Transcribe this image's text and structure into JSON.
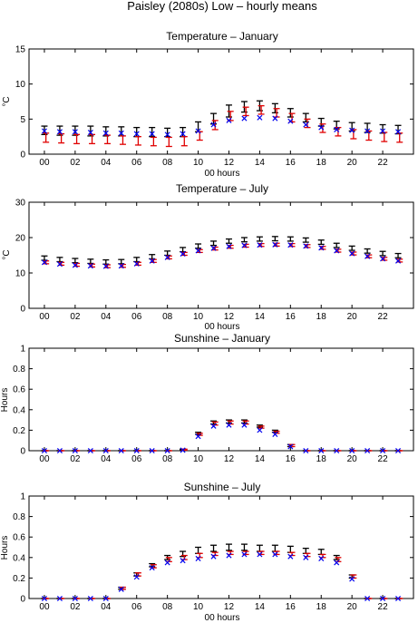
{
  "figure_title": "Paisley (2080s) Low – hourly means",
  "colors": {
    "black": "#000000",
    "red": "#e00000",
    "blue": "#0000ee"
  },
  "chart_data": [
    {
      "type": "scatter",
      "title": "Temperature – January",
      "xlabel": "00 hours",
      "ylabel": "°C",
      "ylim": [
        0,
        15
      ],
      "yticks": [
        0,
        5,
        10,
        15
      ],
      "xlim": [
        -1,
        24
      ],
      "xticks": [
        0,
        2,
        4,
        6,
        8,
        10,
        12,
        14,
        16,
        18,
        20,
        22
      ],
      "xticklabels": [
        "00",
        "02",
        "04",
        "06",
        "08",
        "10",
        "12",
        "14",
        "16",
        "18",
        "20",
        "22"
      ],
      "grid": false,
      "series": [
        {
          "marker": "bar",
          "color": "black",
          "x": [
            0,
            1,
            2,
            3,
            4,
            5,
            6,
            7,
            8,
            9,
            10,
            11,
            12,
            13,
            14,
            15,
            16,
            17,
            18,
            19,
            20,
            21,
            22,
            23
          ],
          "low": [
            2.8,
            2.7,
            2.7,
            2.6,
            2.6,
            2.6,
            2.5,
            2.5,
            2.5,
            2.5,
            3.2,
            4.3,
            5.3,
            6.0,
            6.2,
            5.9,
            5.3,
            4.6,
            4.0,
            3.6,
            3.3,
            3.1,
            3.0,
            2.9
          ],
          "high": [
            4.0,
            4.0,
            4.0,
            4.0,
            3.9,
            3.9,
            3.8,
            3.8,
            3.7,
            3.8,
            4.6,
            5.8,
            7.0,
            7.5,
            7.6,
            7.2,
            6.5,
            5.8,
            5.1,
            4.7,
            4.5,
            4.4,
            4.2,
            4.1
          ]
        },
        {
          "marker": "bar",
          "color": "red",
          "x": [
            0.1,
            1.1,
            2.1,
            3.1,
            4.1,
            5.1,
            6.1,
            7.1,
            8.1,
            9.1,
            10.1,
            11.1,
            12.1,
            13.1,
            14.1,
            15.1,
            16.1,
            17.1,
            18.1,
            19.1,
            20.1,
            21.1,
            22.1,
            23.1
          ],
          "low": [
            1.7,
            1.6,
            1.5,
            1.5,
            1.5,
            1.4,
            1.3,
            1.2,
            1.1,
            1.2,
            2.0,
            3.5,
            4.8,
            5.5,
            5.7,
            5.3,
            4.6,
            3.8,
            3.1,
            2.6,
            2.2,
            2.0,
            1.8,
            1.7
          ],
          "high": [
            3.0,
            2.9,
            2.8,
            2.8,
            2.7,
            2.6,
            2.5,
            2.4,
            2.4,
            2.5,
            3.2,
            4.8,
            6.1,
            6.7,
            6.9,
            6.5,
            5.8,
            5.0,
            4.3,
            3.8,
            3.5,
            3.3,
            3.1,
            3.0
          ]
        },
        {
          "marker": "x",
          "color": "blue",
          "x": [
            0,
            1,
            2,
            3,
            4,
            5,
            6,
            7,
            8,
            9,
            10,
            11,
            12,
            13,
            14,
            15,
            16,
            17,
            18,
            19,
            20,
            21,
            22,
            23
          ],
          "y": [
            3.3,
            3.2,
            3.2,
            3.1,
            3.0,
            3.0,
            2.9,
            2.9,
            2.8,
            2.9,
            3.3,
            4.2,
            4.8,
            5.1,
            5.2,
            5.1,
            4.7,
            4.2,
            3.8,
            3.5,
            3.4,
            3.3,
            3.3,
            3.2
          ]
        }
      ]
    },
    {
      "type": "scatter",
      "title": "Temperature – July",
      "xlabel": "00 hours",
      "ylabel": "°C",
      "ylim": [
        0,
        30
      ],
      "yticks": [
        0,
        10,
        20,
        30
      ],
      "xlim": [
        -1,
        24
      ],
      "xticks": [
        0,
        2,
        4,
        6,
        8,
        10,
        12,
        14,
        16,
        18,
        20,
        22
      ],
      "xticklabels": [
        "00",
        "02",
        "04",
        "06",
        "08",
        "10",
        "12",
        "14",
        "16",
        "18",
        "20",
        "22"
      ],
      "grid": false,
      "series": [
        {
          "marker": "bar",
          "color": "black",
          "x": [
            0,
            1,
            2,
            3,
            4,
            5,
            6,
            7,
            8,
            9,
            10,
            11,
            12,
            13,
            14,
            15,
            16,
            17,
            18,
            19,
            20,
            21,
            22,
            23
          ],
          "low": [
            13.6,
            13.2,
            12.9,
            12.7,
            12.5,
            12.6,
            13.2,
            14.0,
            15.0,
            16.0,
            17.0,
            17.8,
            18.4,
            18.8,
            19.0,
            19.1,
            19.0,
            18.7,
            18.1,
            17.2,
            16.4,
            15.6,
            14.9,
            14.3
          ],
          "high": [
            14.8,
            14.4,
            14.1,
            13.9,
            13.7,
            13.8,
            14.4,
            15.2,
            16.2,
            17.2,
            18.2,
            19.0,
            19.6,
            20.0,
            20.2,
            20.3,
            20.2,
            19.9,
            19.3,
            18.4,
            17.6,
            16.8,
            16.1,
            15.5
          ]
        },
        {
          "marker": "bar",
          "color": "red",
          "x": [
            0.1,
            1.1,
            2.1,
            3.1,
            4.1,
            5.1,
            6.1,
            7.1,
            8.1,
            9.1,
            10.1,
            11.1,
            12.1,
            13.1,
            14.1,
            15.1,
            16.1,
            17.1,
            18.1,
            19.1,
            20.1,
            21.1,
            22.1,
            23.1
          ],
          "low": [
            12.6,
            12.2,
            11.9,
            11.7,
            11.5,
            11.6,
            12.2,
            13.0,
            14.0,
            15.0,
            15.8,
            16.5,
            17.0,
            17.3,
            17.5,
            17.6,
            17.5,
            17.2,
            16.7,
            15.9,
            15.1,
            14.3,
            13.6,
            13.1
          ],
          "high": [
            13.4,
            13.0,
            12.7,
            12.5,
            12.3,
            12.4,
            13.0,
            13.8,
            14.8,
            15.8,
            16.6,
            17.3,
            17.8,
            18.1,
            18.3,
            18.4,
            18.3,
            18.0,
            17.5,
            16.7,
            15.9,
            15.1,
            14.4,
            13.9
          ]
        },
        {
          "marker": "x",
          "color": "blue",
          "x": [
            0,
            1,
            2,
            3,
            4,
            5,
            6,
            7,
            8,
            9,
            10,
            11,
            12,
            13,
            14,
            15,
            16,
            17,
            18,
            19,
            20,
            21,
            22,
            23
          ],
          "y": [
            13.0,
            12.5,
            12.2,
            12.0,
            11.9,
            12.0,
            12.6,
            13.4,
            14.4,
            15.4,
            16.3,
            17.0,
            17.5,
            17.8,
            17.9,
            18.0,
            17.9,
            17.6,
            17.1,
            16.3,
            15.5,
            14.7,
            14.0,
            13.4
          ]
        }
      ]
    },
    {
      "type": "scatter",
      "title": "Sunshine – January",
      "xlabel": "00 hours",
      "ylabel": "Hours",
      "ylim": [
        0,
        1
      ],
      "yticks": [
        0,
        0.2,
        0.4,
        0.6,
        0.8,
        1
      ],
      "yticklabels": [
        "0",
        "0.2",
        "0.4",
        "0.6",
        "0.8",
        "1"
      ],
      "xlim": [
        -1,
        24
      ],
      "xticks": [
        0,
        2,
        4,
        6,
        8,
        10,
        12,
        14,
        16,
        18,
        20,
        22
      ],
      "xticklabels": [
        "00",
        "02",
        "04",
        "06",
        "08",
        "10",
        "12",
        "14",
        "16",
        "18",
        "20",
        "22"
      ],
      "grid": false,
      "series": [
        {
          "marker": "bar",
          "color": "black",
          "x": [
            0,
            1,
            2,
            3,
            4,
            5,
            6,
            7,
            8,
            9,
            10,
            11,
            12,
            13,
            14,
            15,
            16,
            17,
            18,
            19,
            20,
            21,
            22,
            23
          ],
          "low": [
            0,
            0,
            0,
            0,
            0,
            0,
            0,
            0,
            0,
            0.005,
            0.16,
            0.26,
            0.27,
            0.27,
            0.23,
            0.18,
            0.04,
            0,
            0,
            0,
            0,
            0,
            0,
            0
          ],
          "high": [
            0,
            0,
            0,
            0,
            0,
            0,
            0,
            0,
            0,
            0.015,
            0.18,
            0.29,
            0.3,
            0.3,
            0.25,
            0.2,
            0.06,
            0,
            0,
            0,
            0,
            0,
            0,
            0
          ]
        },
        {
          "marker": "bar",
          "color": "red",
          "x": [
            0.1,
            1.1,
            2.1,
            3.1,
            4.1,
            5.1,
            6.1,
            7.1,
            8.1,
            9.1,
            10.1,
            11.1,
            12.1,
            13.1,
            14.1,
            15.1,
            16.1,
            17.1,
            18.1,
            19.1,
            20.1,
            21.1,
            22.1,
            23.1
          ],
          "low": [
            0,
            0,
            0,
            0,
            0,
            0,
            0,
            0,
            0,
            0.005,
            0.15,
            0.25,
            0.26,
            0.26,
            0.22,
            0.17,
            0.04,
            0,
            0,
            0,
            0,
            0,
            0,
            0
          ],
          "high": [
            0,
            0,
            0,
            0,
            0,
            0,
            0,
            0,
            0,
            0.015,
            0.17,
            0.28,
            0.29,
            0.29,
            0.24,
            0.19,
            0.06,
            0,
            0,
            0,
            0,
            0,
            0,
            0
          ]
        },
        {
          "marker": "x",
          "color": "blue",
          "x": [
            0,
            1,
            2,
            3,
            4,
            5,
            6,
            7,
            8,
            9,
            10,
            11,
            12,
            13,
            14,
            15,
            16,
            17,
            18,
            19,
            20,
            21,
            22,
            23
          ],
          "y": [
            0,
            0,
            0,
            0,
            0,
            0,
            0,
            0,
            0,
            0.005,
            0.14,
            0.24,
            0.25,
            0.25,
            0.2,
            0.16,
            0.04,
            0,
            0,
            0,
            0,
            0,
            0,
            0
          ]
        }
      ]
    },
    {
      "type": "scatter",
      "title": "Sunshine – July",
      "xlabel": "00 hours",
      "ylabel": "Hours",
      "ylim": [
        0,
        1
      ],
      "yticks": [
        0,
        0.2,
        0.4,
        0.6,
        0.8,
        1
      ],
      "yticklabels": [
        "0",
        "0.2",
        "0.4",
        "0.6",
        "0.8",
        "1"
      ],
      "xlim": [
        -1,
        24
      ],
      "xticks": [
        0,
        2,
        4,
        6,
        8,
        10,
        12,
        14,
        16,
        18,
        20,
        22
      ],
      "xticklabels": [
        "00",
        "02",
        "04",
        "06",
        "08",
        "10",
        "12",
        "14",
        "16",
        "18",
        "20",
        "22"
      ],
      "grid": false,
      "series": [
        {
          "marker": "bar",
          "color": "black",
          "x": [
            0,
            1,
            2,
            3,
            4,
            5,
            6,
            7,
            8,
            9,
            10,
            11,
            12,
            13,
            14,
            15,
            16,
            17,
            18,
            19,
            20,
            21,
            22,
            23
          ],
          "low": [
            0,
            0,
            0,
            0,
            0,
            0.09,
            0.22,
            0.31,
            0.38,
            0.41,
            0.44,
            0.46,
            0.47,
            0.47,
            0.46,
            0.46,
            0.45,
            0.44,
            0.43,
            0.38,
            0.2,
            0,
            0,
            0
          ],
          "high": [
            0,
            0,
            0,
            0,
            0,
            0.11,
            0.25,
            0.34,
            0.42,
            0.46,
            0.5,
            0.52,
            0.53,
            0.53,
            0.52,
            0.52,
            0.51,
            0.49,
            0.48,
            0.42,
            0.23,
            0,
            0,
            0
          ]
        },
        {
          "marker": "bar",
          "color": "red",
          "x": [
            0.1,
            1.1,
            2.1,
            3.1,
            4.1,
            5.1,
            6.1,
            7.1,
            8.1,
            9.1,
            10.1,
            11.1,
            12.1,
            13.1,
            14.1,
            15.1,
            16.1,
            17.1,
            18.1,
            19.1,
            20.1,
            21.1,
            22.1,
            23.1
          ],
          "low": [
            0,
            0,
            0,
            0,
            0,
            0.09,
            0.22,
            0.3,
            0.36,
            0.38,
            0.4,
            0.42,
            0.43,
            0.43,
            0.43,
            0.43,
            0.42,
            0.41,
            0.4,
            0.36,
            0.2,
            0,
            0,
            0
          ],
          "high": [
            0,
            0,
            0,
            0,
            0,
            0.11,
            0.25,
            0.33,
            0.4,
            0.42,
            0.44,
            0.45,
            0.46,
            0.46,
            0.46,
            0.46,
            0.45,
            0.44,
            0.43,
            0.4,
            0.23,
            0,
            0,
            0
          ]
        },
        {
          "marker": "x",
          "color": "blue",
          "x": [
            0,
            1,
            2,
            3,
            4,
            5,
            6,
            7,
            8,
            9,
            10,
            11,
            12,
            13,
            14,
            15,
            16,
            17,
            18,
            19,
            20,
            21,
            22,
            23
          ],
          "y": [
            0,
            0,
            0,
            0,
            0,
            0.09,
            0.21,
            0.3,
            0.35,
            0.37,
            0.39,
            0.41,
            0.42,
            0.43,
            0.43,
            0.43,
            0.41,
            0.4,
            0.39,
            0.35,
            0.19,
            0,
            0,
            0
          ]
        }
      ]
    }
  ]
}
